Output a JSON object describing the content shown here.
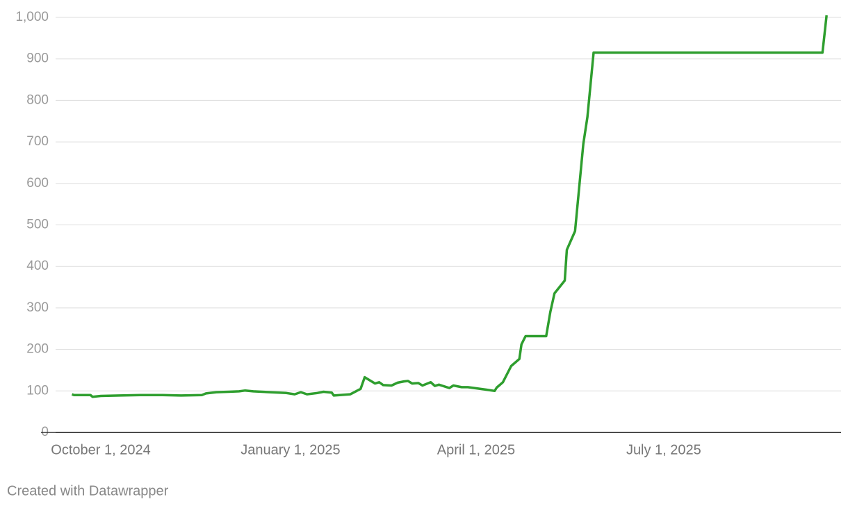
{
  "chart_data": {
    "type": "line",
    "color": "#2e9e2e",
    "x": [
      "2024-09-17",
      "2024-09-18",
      "2024-09-26",
      "2024-09-27",
      "2024-10-01",
      "2024-10-10",
      "2024-10-20",
      "2024-10-31",
      "2024-11-09",
      "2024-11-19",
      "2024-11-21",
      "2024-11-26",
      "2024-12-02",
      "2024-12-07",
      "2024-12-10",
      "2024-12-14",
      "2024-12-22",
      "2024-12-30",
      "2025-01-03",
      "2025-01-06",
      "2025-01-09",
      "2025-01-14",
      "2025-01-17",
      "2025-01-21",
      "2025-01-22",
      "2025-01-30",
      "2025-02-04",
      "2025-02-06",
      "2025-02-11",
      "2025-02-13",
      "2025-02-15",
      "2025-02-19",
      "2025-02-22",
      "2025-02-25",
      "2025-02-27",
      "2025-03-01",
      "2025-03-04",
      "2025-03-06",
      "2025-03-10",
      "2025-03-12",
      "2025-03-14",
      "2025-03-19",
      "2025-03-21",
      "2025-03-25",
      "2025-03-28",
      "2025-04-06",
      "2025-04-10",
      "2025-04-11",
      "2025-04-14",
      "2025-04-18",
      "2025-04-22",
      "2025-04-23",
      "2025-04-25",
      "2025-05-05",
      "2025-05-07",
      "2025-05-09",
      "2025-05-14",
      "2025-05-15",
      "2025-05-19",
      "2025-05-23",
      "2025-05-25",
      "2025-05-28",
      "2025-09-16",
      "2025-09-18"
    ],
    "values": [
      92,
      90,
      90,
      86,
      88,
      89,
      90,
      90,
      89,
      90,
      94,
      97,
      98,
      99,
      101,
      99,
      97,
      95,
      92,
      97,
      92,
      95,
      98,
      96,
      89,
      92,
      105,
      133,
      118,
      121,
      114,
      113,
      120,
      123,
      124,
      118,
      119,
      113,
      121,
      112,
      115,
      107,
      113,
      109,
      109,
      103,
      100,
      108,
      121,
      160,
      177,
      212,
      232,
      232,
      290,
      335,
      366,
      440,
      485,
      695,
      760,
      915,
      915,
      1005
    ],
    "xlim": [
      "2024-09-02",
      "2025-09-25"
    ],
    "xticks": [
      {
        "value": "2024-10-01",
        "label": "October 1, 2024"
      },
      {
        "value": "2025-01-01",
        "label": "January 1, 2025"
      },
      {
        "value": "2025-04-01",
        "label": "April 1, 2025"
      },
      {
        "value": "2025-07-01",
        "label": "July 1, 2025"
      }
    ],
    "ylim": [
      0,
      1000
    ],
    "yticks": [
      0,
      100,
      200,
      300,
      400,
      500,
      600,
      700,
      800,
      900,
      {
        "value": 1000,
        "label": "1,000"
      }
    ],
    "grid": true,
    "source": "Created with Datawrapper"
  }
}
